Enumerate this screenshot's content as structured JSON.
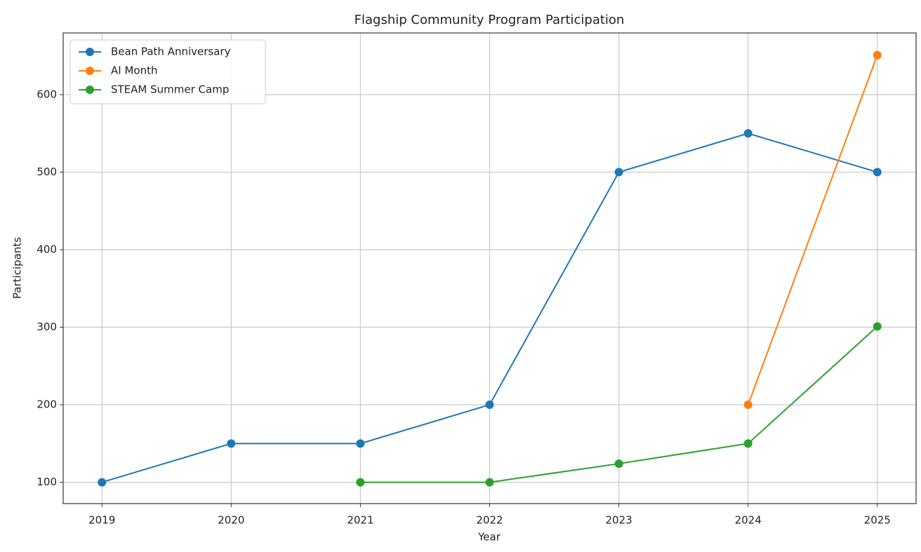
{
  "chart_data": {
    "type": "line",
    "title": "Flagship Community Program Participation",
    "x_label": "Year",
    "y_label": "Participants",
    "x": [
      2019,
      2020,
      2021,
      2022,
      2023,
      2024,
      2025
    ],
    "series": [
      {
        "name": "Bean Path Anniversary",
        "color": "#1f77b4",
        "values": [
          100,
          150,
          150,
          200,
          500,
          550,
          500
        ]
      },
      {
        "name": "AI Month",
        "color": "#ff7f0e",
        "values": [
          null,
          null,
          null,
          null,
          null,
          200,
          651
        ]
      },
      {
        "name": "STEAM Summer Camp",
        "color": "#2ca02c",
        "values": [
          null,
          null,
          100,
          100,
          124,
          150,
          301
        ]
      }
    ],
    "xlim": [
      2018.7,
      2025.3
    ],
    "xticks": [
      2019,
      2020,
      2021,
      2022,
      2023,
      2024,
      2025
    ],
    "ylim": [
      72.5,
      679.5
    ],
    "yticks": [
      100,
      200,
      300,
      400,
      500,
      600
    ],
    "grid": true,
    "legend": "upper left"
  }
}
